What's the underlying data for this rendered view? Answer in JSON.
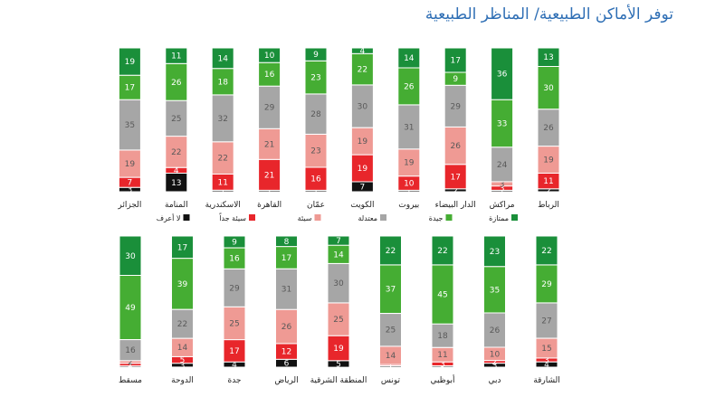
{
  "title": "توفر الأماكن الطبيعية/ المناظر الطبيعية",
  "legend": [
    {
      "key": "excellent",
      "label": "ممتازة",
      "color": "#1a8f3a"
    },
    {
      "key": "good",
      "label": "جيدة",
      "color": "#45ad33"
    },
    {
      "key": "average",
      "label": "معتدلة",
      "color": "#a6a6a6"
    },
    {
      "key": "poor",
      "label": "سيئة",
      "color": "#ef9a94"
    },
    {
      "key": "very_poor",
      "label": "سيئة جداً",
      "color": "#e8262b"
    },
    {
      "key": "dont_know",
      "label": "لا أعرف",
      "color": "#111111"
    }
  ],
  "chart_data": [
    {
      "type": "bar",
      "stacked": true,
      "unit": "%",
      "categories": [
        "الرباط",
        "مراكش",
        "الدار البيضاء",
        "بيروت",
        "الكويت",
        "عمّان",
        "القاهرة",
        "الاسكندرية",
        "المنامة",
        "الجزائر"
      ],
      "series": [
        {
          "name": "لا أعرف",
          "key": "dont_know",
          "values": [
            2,
            1,
            2,
            1,
            7,
            1,
            1,
            1,
            13,
            3
          ]
        },
        {
          "name": "سيئة جداً",
          "key": "very_poor",
          "values": [
            11,
            3,
            17,
            10,
            19,
            16,
            21,
            11,
            4,
            7
          ]
        },
        {
          "name": "سيئة",
          "key": "poor",
          "values": [
            19,
            3,
            26,
            19,
            19,
            23,
            21,
            22,
            22,
            19
          ]
        },
        {
          "name": "معتدلة",
          "key": "average",
          "values": [
            26,
            24,
            29,
            31,
            30,
            28,
            29,
            32,
            25,
            35
          ]
        },
        {
          "name": "جيدة",
          "key": "good",
          "values": [
            30,
            33,
            9,
            26,
            22,
            23,
            16,
            18,
            26,
            17
          ]
        },
        {
          "name": "ممتازة",
          "key": "excellent",
          "values": [
            13,
            36,
            17,
            14,
            4,
            9,
            10,
            14,
            11,
            19
          ]
        }
      ]
    },
    {
      "type": "bar",
      "stacked": true,
      "unit": "%",
      "categories": [
        "الشارقة",
        "دبي",
        "أبوظبي",
        "تونس",
        "المنطقة الشرقية",
        "الرياض",
        "جدة",
        "الدوحة",
        "مسقط"
      ],
      "series": [
        {
          "name": "لا أعرف",
          "key": "dont_know",
          "values": [
            4,
            3,
            1,
            1,
            5,
            6,
            4,
            3,
            1
          ]
        },
        {
          "name": "سيئة جداً",
          "key": "very_poor",
          "values": [
            3,
            2,
            3,
            1,
            19,
            12,
            17,
            5,
            2
          ]
        },
        {
          "name": "سيئة",
          "key": "poor",
          "values": [
            15,
            10,
            11,
            14,
            25,
            26,
            25,
            14,
            2
          ]
        },
        {
          "name": "معتدلة",
          "key": "average",
          "values": [
            27,
            26,
            18,
            25,
            30,
            31,
            29,
            22,
            16
          ]
        },
        {
          "name": "جيدة",
          "key": "good",
          "values": [
            29,
            35,
            45,
            37,
            14,
            17,
            16,
            39,
            49
          ]
        },
        {
          "name": "ممتازة",
          "key": "excellent",
          "values": [
            22,
            23,
            22,
            22,
            7,
            8,
            9,
            17,
            30
          ]
        }
      ]
    }
  ]
}
